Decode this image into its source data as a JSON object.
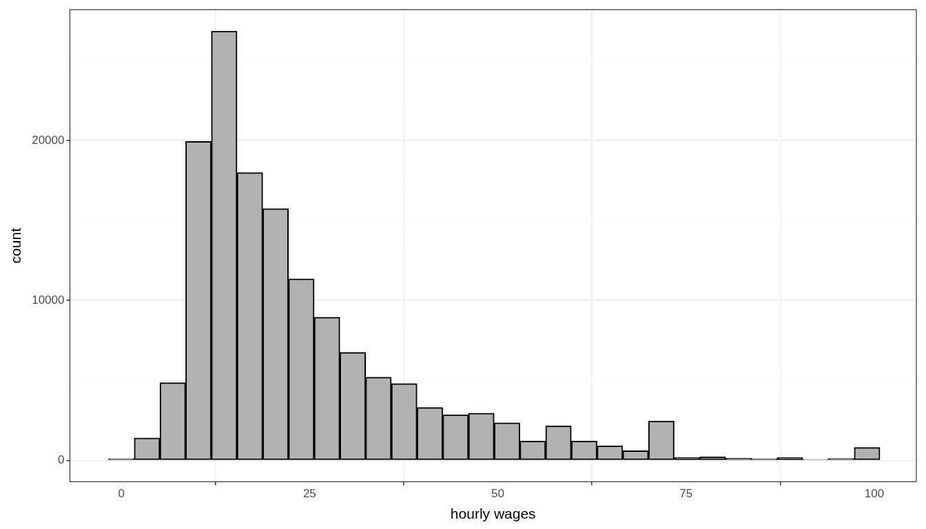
{
  "chart_data": {
    "type": "histogram",
    "x_label": "hourly wages",
    "y_label": "count",
    "bins": [
      -1.71,
      1.705,
      5.12,
      8.535,
      11.95,
      15.365,
      18.78,
      22.195,
      25.61,
      29.025,
      32.44,
      35.855,
      39.27,
      42.685,
      46.1,
      49.515,
      52.93,
      56.345,
      59.76,
      63.175,
      66.59,
      70.005,
      73.42,
      76.835,
      80.25,
      83.665,
      87.08,
      90.495,
      93.91,
      97.325,
      100.74
    ],
    "values": [
      100,
      1400,
      4850,
      19950,
      26850,
      18000,
      15750,
      11350,
      8950,
      6750,
      5200,
      4800,
      3300,
      2850,
      2950,
      2350,
      1200,
      2150,
      1200,
      900,
      600,
      2450,
      180,
      220,
      130,
      100,
      180,
      60,
      120,
      800
    ],
    "color": "#b2b2b2",
    "xlim": [
      -6.83,
      105.58
    ],
    "ylim": [
      -1342,
      28192
    ],
    "xticks": [
      0,
      25,
      50,
      75,
      100
    ],
    "yticks": [
      0,
      10000,
      20000
    ],
    "grid": true
  }
}
